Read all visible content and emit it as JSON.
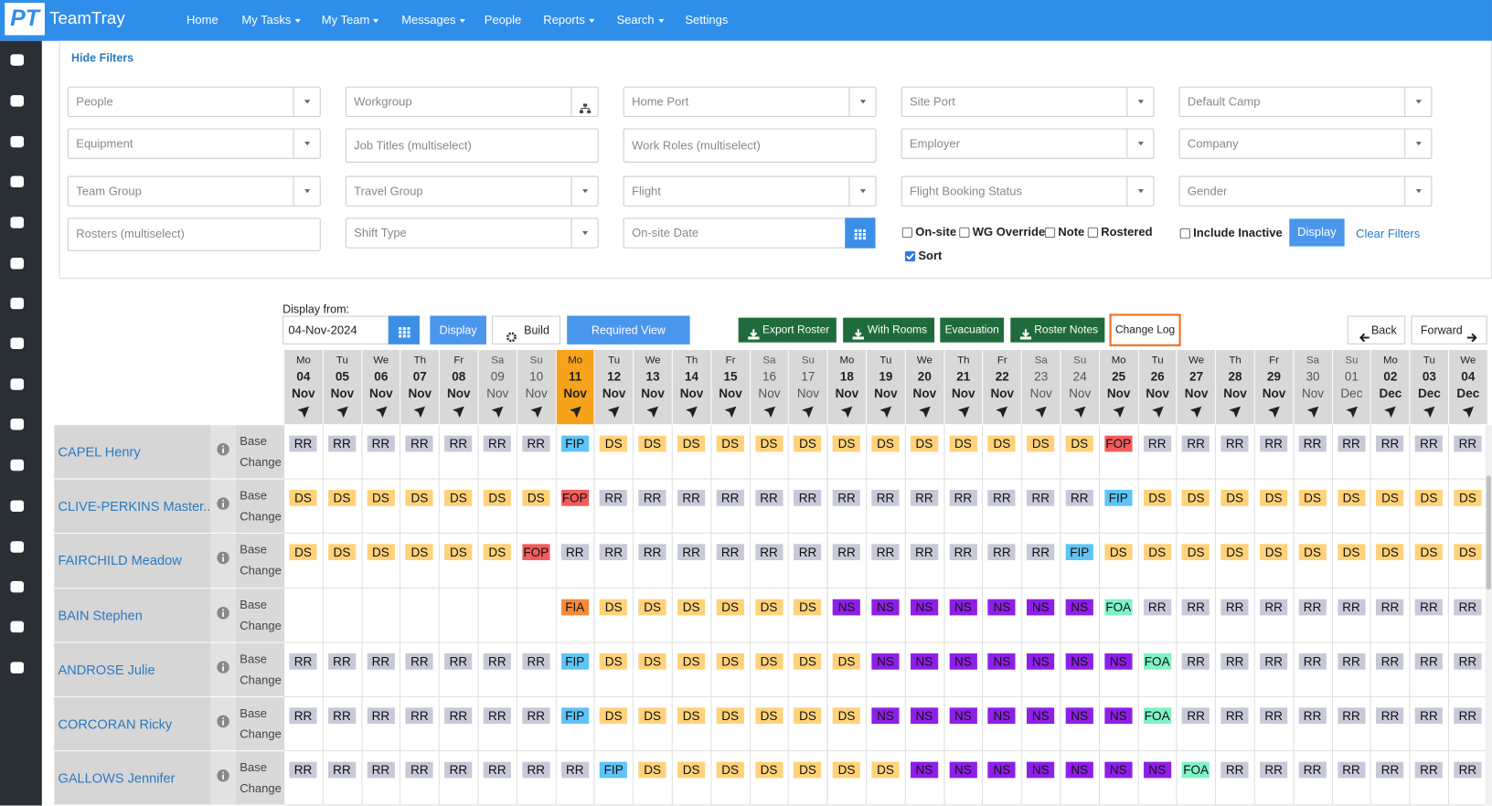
{
  "header": {
    "logo": "PT",
    "brand": "TeamTray",
    "nav": [
      {
        "label": "Home"
      },
      {
        "label": "My Tasks",
        "dropdown": true
      },
      {
        "label": "My Team",
        "dropdown": true
      },
      {
        "label": "Messages",
        "dropdown": true
      },
      {
        "label": "People"
      },
      {
        "label": "Reports",
        "dropdown": true
      },
      {
        "label": "Search",
        "dropdown": true
      },
      {
        "label": "Settings"
      }
    ]
  },
  "filters": {
    "toggle": "Hide Filters",
    "fields": [
      [
        {
          "placeholder": "People",
          "kind": "select"
        },
        {
          "placeholder": "Workgroup",
          "kind": "tree"
        },
        {
          "placeholder": "Home Port",
          "kind": "select"
        },
        {
          "placeholder": "Site Port",
          "kind": "select"
        },
        {
          "placeholder": "Default Camp",
          "kind": "select"
        }
      ],
      [
        {
          "placeholder": "Equipment",
          "kind": "select"
        },
        {
          "placeholder": "Job Titles (multiselect)",
          "kind": "text"
        },
        {
          "placeholder": "Work Roles (multiselect)",
          "kind": "text"
        },
        {
          "placeholder": "Employer",
          "kind": "select"
        },
        {
          "placeholder": "Company",
          "kind": "select"
        }
      ],
      [
        {
          "placeholder": "Team Group",
          "kind": "select"
        },
        {
          "placeholder": "Travel Group",
          "kind": "select"
        },
        {
          "placeholder": "Flight",
          "kind": "select"
        },
        {
          "placeholder": "Flight Booking Status",
          "kind": "select"
        },
        {
          "placeholder": "Gender",
          "kind": "select"
        }
      ],
      [
        {
          "placeholder": "Rosters (multiselect)",
          "kind": "text"
        },
        {
          "placeholder": "Shift Type",
          "kind": "select"
        },
        {
          "placeholder": "On-site Date",
          "kind": "date"
        }
      ]
    ],
    "checkboxes": [
      {
        "label": "On-site",
        "checked": false
      },
      {
        "label": "WG Override",
        "checked": false
      },
      {
        "label": "Note",
        "checked": false
      },
      {
        "label": "Rostered",
        "checked": false
      },
      {
        "label": "Include Inactive",
        "checked": false
      },
      {
        "label": "Sort",
        "checked": true
      }
    ],
    "display": "Display",
    "clear": "Clear Filters"
  },
  "toolbar": {
    "display_from": "Display from:",
    "date": "04-Nov-2024",
    "display": "Display",
    "build": "Build",
    "required_view": "Required View",
    "export_roster": "Export Roster",
    "with_rooms": "With Rooms",
    "evacuation": "Evacuation",
    "roster_notes": "Roster Notes",
    "change_log": "Change Log",
    "back": "Back",
    "forward": "Forward"
  },
  "roster": {
    "days": [
      {
        "dow": "Mo",
        "day": "04",
        "month": "Nov"
      },
      {
        "dow": "Tu",
        "day": "05",
        "month": "Nov"
      },
      {
        "dow": "We",
        "day": "06",
        "month": "Nov"
      },
      {
        "dow": "Th",
        "day": "07",
        "month": "Nov"
      },
      {
        "dow": "Fr",
        "day": "08",
        "month": "Nov"
      },
      {
        "dow": "Sa",
        "day": "09",
        "month": "Nov"
      },
      {
        "dow": "Su",
        "day": "10",
        "month": "Nov"
      },
      {
        "dow": "Mo",
        "day": "11",
        "month": "Nov",
        "today": true
      },
      {
        "dow": "Tu",
        "day": "12",
        "month": "Nov"
      },
      {
        "dow": "We",
        "day": "13",
        "month": "Nov"
      },
      {
        "dow": "Th",
        "day": "14",
        "month": "Nov"
      },
      {
        "dow": "Fr",
        "day": "15",
        "month": "Nov"
      },
      {
        "dow": "Sa",
        "day": "16",
        "month": "Nov"
      },
      {
        "dow": "Su",
        "day": "17",
        "month": "Nov"
      },
      {
        "dow": "Mo",
        "day": "18",
        "month": "Nov"
      },
      {
        "dow": "Tu",
        "day": "19",
        "month": "Nov"
      },
      {
        "dow": "We",
        "day": "20",
        "month": "Nov"
      },
      {
        "dow": "Th",
        "day": "21",
        "month": "Nov"
      },
      {
        "dow": "Fr",
        "day": "22",
        "month": "Nov"
      },
      {
        "dow": "Sa",
        "day": "23",
        "month": "Nov"
      },
      {
        "dow": "Su",
        "day": "24",
        "month": "Nov"
      },
      {
        "dow": "Mo",
        "day": "25",
        "month": "Nov"
      },
      {
        "dow": "Tu",
        "day": "26",
        "month": "Nov"
      },
      {
        "dow": "We",
        "day": "27",
        "month": "Nov"
      },
      {
        "dow": "Th",
        "day": "28",
        "month": "Nov"
      },
      {
        "dow": "Fr",
        "day": "29",
        "month": "Nov"
      },
      {
        "dow": "Sa",
        "day": "30",
        "month": "Nov"
      },
      {
        "dow": "Su",
        "day": "01",
        "month": "Dec"
      },
      {
        "dow": "Mo",
        "day": "02",
        "month": "Dec"
      },
      {
        "dow": "Tu",
        "day": "03",
        "month": "Dec"
      },
      {
        "dow": "We",
        "day": "04",
        "month": "Dec"
      }
    ],
    "code_colors": {
      "RR": "#c8c9d8",
      "DS": "#ffd27a",
      "FIP": "#5ec4f5",
      "FOP": "#f25c5c",
      "NS": "#8e1fe8",
      "FOA": "#7ff2c6",
      "FIA": "#f58a3c"
    },
    "people": [
      {
        "name": "CAPEL Henry",
        "base": "Base",
        "change": "Change",
        "codes": [
          "RR",
          "RR",
          "RR",
          "RR",
          "RR",
          "RR",
          "RR",
          "FIP",
          "DS",
          "DS",
          "DS",
          "DS",
          "DS",
          "DS",
          "DS",
          "DS",
          "DS",
          "DS",
          "DS",
          "DS",
          "DS",
          "FOP",
          "RR",
          "RR",
          "RR",
          "RR",
          "RR",
          "RR",
          "RR",
          "RR",
          "RR"
        ]
      },
      {
        "name": "CLIVE-PERKINS Master...",
        "base": "Base",
        "change": "Change",
        "codes": [
          "DS",
          "DS",
          "DS",
          "DS",
          "DS",
          "DS",
          "DS",
          "FOP",
          "RR",
          "RR",
          "RR",
          "RR",
          "RR",
          "RR",
          "RR",
          "RR",
          "RR",
          "RR",
          "RR",
          "RR",
          "RR",
          "FIP",
          "DS",
          "DS",
          "DS",
          "DS",
          "DS",
          "DS",
          "DS",
          "DS",
          "DS"
        ]
      },
      {
        "name": "FAIRCHILD Meadow",
        "base": "Base",
        "change": "Change",
        "codes": [
          "DS",
          "DS",
          "DS",
          "DS",
          "DS",
          "DS",
          "FOP",
          "RR",
          "RR",
          "RR",
          "RR",
          "RR",
          "RR",
          "RR",
          "RR",
          "RR",
          "RR",
          "RR",
          "RR",
          "RR",
          "FIP",
          "DS",
          "DS",
          "DS",
          "DS",
          "DS",
          "DS",
          "DS",
          "DS",
          "DS",
          "DS"
        ]
      },
      {
        "name": "BAIN Stephen",
        "base": "Base",
        "change": "Change",
        "codes": [
          null,
          null,
          null,
          null,
          null,
          null,
          null,
          "FIA",
          "DS",
          "DS",
          "DS",
          "DS",
          "DS",
          "DS",
          "NS",
          "NS",
          "NS",
          "NS",
          "NS",
          "NS",
          "NS",
          "FOA",
          "RR",
          "RR",
          "RR",
          "RR",
          "RR",
          "RR",
          "RR",
          "RR",
          "RR"
        ]
      },
      {
        "name": "ANDROSE Julie",
        "base": "Base",
        "change": "Change",
        "codes": [
          "RR",
          "RR",
          "RR",
          "RR",
          "RR",
          "RR",
          "RR",
          "FIP",
          "DS",
          "DS",
          "DS",
          "DS",
          "DS",
          "DS",
          "DS",
          "NS",
          "NS",
          "NS",
          "NS",
          "NS",
          "NS",
          "NS",
          "FOA",
          "RR",
          "RR",
          "RR",
          "RR",
          "RR",
          "RR",
          "RR",
          "RR"
        ]
      },
      {
        "name": "CORCORAN Ricky",
        "base": "Base",
        "change": "Change",
        "codes": [
          "RR",
          "RR",
          "RR",
          "RR",
          "RR",
          "RR",
          "RR",
          "FIP",
          "DS",
          "DS",
          "DS",
          "DS",
          "DS",
          "DS",
          "DS",
          "NS",
          "NS",
          "NS",
          "NS",
          "NS",
          "NS",
          "NS",
          "FOA",
          "RR",
          "RR",
          "RR",
          "RR",
          "RR",
          "RR",
          "RR",
          "RR"
        ]
      },
      {
        "name": "GALLOWS Jennifer",
        "base": "Base",
        "change": "Change",
        "codes": [
          "RR",
          "RR",
          "RR",
          "RR",
          "RR",
          "RR",
          "RR",
          "RR",
          "FIP",
          "DS",
          "DS",
          "DS",
          "DS",
          "DS",
          "DS",
          "DS",
          "NS",
          "NS",
          "NS",
          "NS",
          "NS",
          "NS",
          "NS",
          "FOA",
          "RR",
          "RR",
          "RR",
          "RR",
          "RR",
          "RR",
          "RR"
        ]
      }
    ]
  }
}
